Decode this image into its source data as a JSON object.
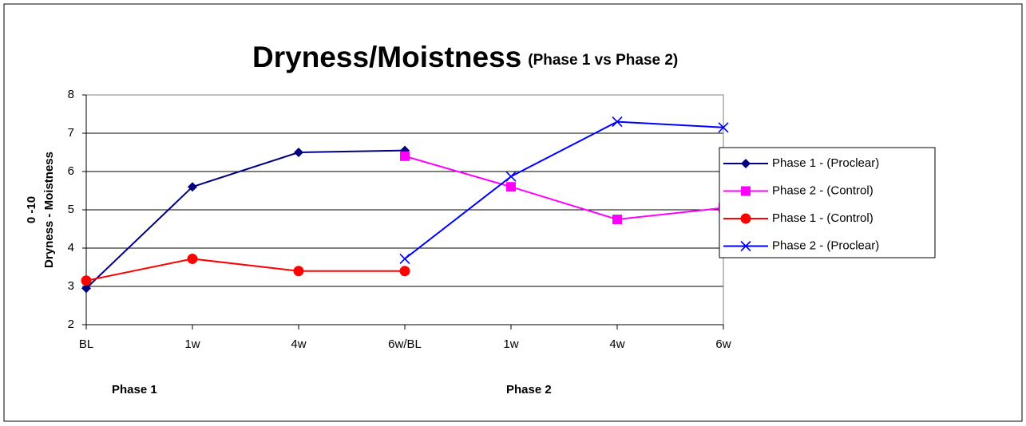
{
  "chart_data": {
    "type": "line",
    "title": "Dryness/Moistness",
    "subtitle": "(Phase 1 vs Phase 2)",
    "ylabel": [
      "0 -10",
      "Dryness - Moistness"
    ],
    "annotations": [
      "Phase 1",
      "Phase 2"
    ],
    "categories": [
      "BL",
      "1w",
      "4w",
      "6w/BL",
      "1w",
      "4w",
      "6w"
    ],
    "ylim": [
      2,
      8
    ],
    "yticks": [
      2,
      3,
      4,
      5,
      6,
      7,
      8
    ],
    "grid": true,
    "series": [
      {
        "name": "Phase 1 - (Proclear)",
        "color": "#000080",
        "marker": "diamond",
        "values": [
          2.95,
          5.6,
          6.5,
          6.55,
          null,
          null,
          null
        ]
      },
      {
        "name": "Phase 2 - (Control)",
        "color": "#ff00ff",
        "marker": "square",
        "values": [
          null,
          null,
          null,
          6.4,
          5.6,
          4.75,
          5.05
        ]
      },
      {
        "name": "Phase 1 - (Control)",
        "color": "#ff0000",
        "marker": "circle",
        "values": [
          3.15,
          3.72,
          3.4,
          3.4,
          null,
          null,
          null
        ]
      },
      {
        "name": "Phase 2 - (Proclear)",
        "color": "#0000ff",
        "marker": "x",
        "values": [
          null,
          null,
          null,
          3.72,
          5.87,
          7.3,
          7.15
        ]
      }
    ]
  }
}
